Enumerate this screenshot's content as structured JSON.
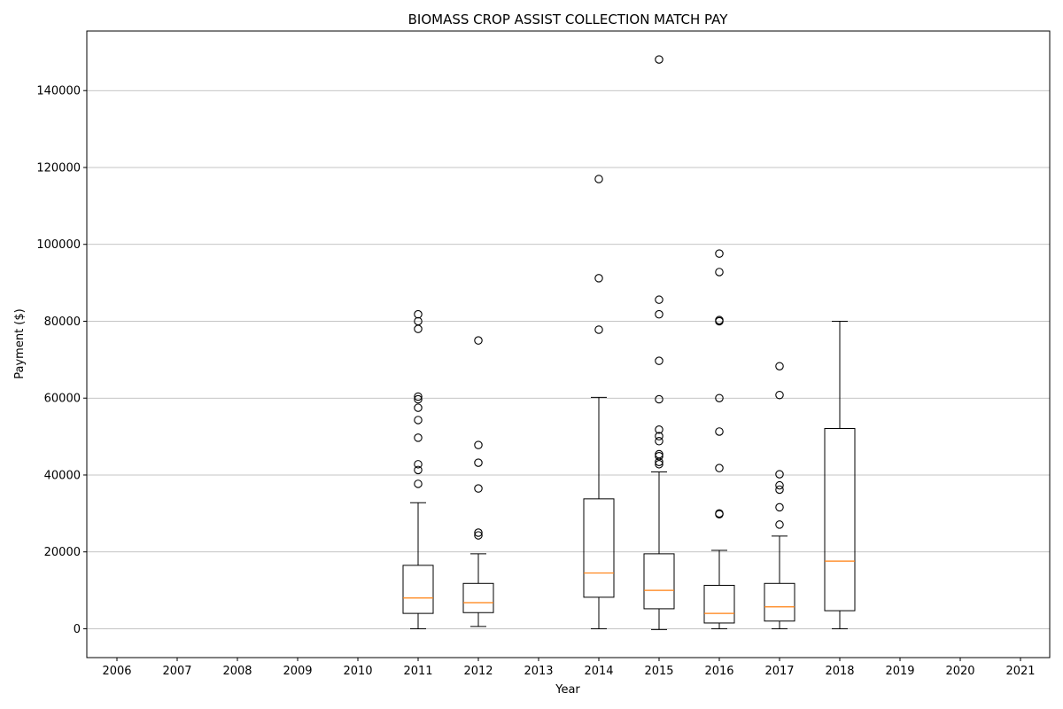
{
  "chart_data": {
    "type": "boxplot",
    "title": "BIOMASS CROP ASSIST COLLECTION MATCH PAY",
    "xlabel": "Year",
    "ylabel": "Payment ($)",
    "categories": [
      "2006",
      "2007",
      "2008",
      "2009",
      "2010",
      "2011",
      "2012",
      "2013",
      "2014",
      "2015",
      "2016",
      "2017",
      "2018",
      "2019",
      "2020",
      "2021"
    ],
    "ylim": [
      -7500,
      155500
    ],
    "yticks": [
      0,
      20000,
      40000,
      60000,
      80000,
      100000,
      120000,
      140000
    ],
    "ytick_labels": [
      "0",
      "20000",
      "40000",
      "60000",
      "80000",
      "100000",
      "120000",
      "140000"
    ],
    "grid": "y",
    "boxes": [
      {
        "year": "2011",
        "whislo": 0,
        "q1": 4000,
        "med": 8000,
        "q3": 16500,
        "whishi": 32800,
        "fliers": [
          37700,
          41300,
          42800,
          49700,
          54300,
          57500,
          59700,
          60400,
          78000,
          80000,
          81800
        ]
      },
      {
        "year": "2012",
        "whislo": 600,
        "q1": 4200,
        "med": 6800,
        "q3": 11800,
        "whishi": 19500,
        "fliers": [
          24300,
          25000,
          36500,
          43200,
          47800,
          75000
        ]
      },
      {
        "year": "2014",
        "whislo": 0,
        "q1": 8200,
        "med": 14500,
        "q3": 33800,
        "whishi": 60200,
        "fliers": [
          77800,
          91200,
          117000
        ]
      },
      {
        "year": "2015",
        "whislo": -200,
        "q1": 5200,
        "med": 10000,
        "q3": 19500,
        "whishi": 40800,
        "fliers": [
          42800,
          43400,
          44900,
          45400,
          48800,
          50100,
          51800,
          59700,
          69700,
          81800,
          85600,
          148100
        ]
      },
      {
        "year": "2016",
        "whislo": 0,
        "q1": 1500,
        "med": 4000,
        "q3": 11300,
        "whishi": 20400,
        "fliers": [
          29800,
          30000,
          41800,
          51300,
          60000,
          80000,
          80300,
          92800,
          97600
        ]
      },
      {
        "year": "2017",
        "whislo": 0,
        "q1": 2000,
        "med": 5700,
        "q3": 11800,
        "whishi": 24100,
        "fliers": [
          27100,
          31600,
          36200,
          37300,
          40200,
          60800,
          68300
        ]
      },
      {
        "year": "2018",
        "whislo": 0,
        "q1": 4700,
        "med": 17600,
        "q3": 52100,
        "whishi": 80000,
        "fliers": []
      }
    ]
  }
}
